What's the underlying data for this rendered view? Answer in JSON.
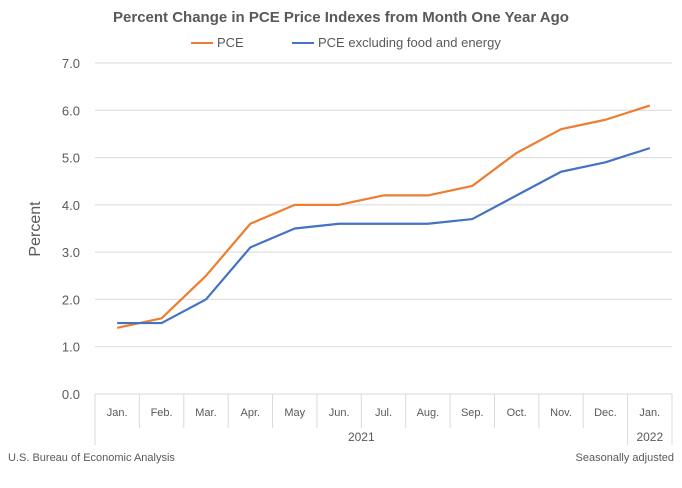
{
  "chart_data": {
    "type": "line",
    "title": "Percent Change in PCE Price Indexes from Month One Year Ago",
    "ylabel": "Percent",
    "xlabel": "",
    "categories": [
      "Jan.",
      "Feb.",
      "Mar.",
      "Apr.",
      "May",
      "Jun.",
      "Jul.",
      "Aug.",
      "Sep.",
      "Oct.",
      "Nov.",
      "Dec.",
      "Jan."
    ],
    "year_groups": [
      {
        "label": "2021",
        "count": 12
      },
      {
        "label": "2022",
        "count": 1
      }
    ],
    "ylim": [
      0,
      7
    ],
    "yticks": [
      "0.0",
      "1.0",
      "2.0",
      "3.0",
      "4.0",
      "5.0",
      "6.0",
      "7.0"
    ],
    "grid": true,
    "legend_position": "top",
    "series": [
      {
        "name": "PCE",
        "color": "#ED7D31",
        "values": [
          1.4,
          1.6,
          2.5,
          3.6,
          4.0,
          4.0,
          4.2,
          4.2,
          4.4,
          5.1,
          5.6,
          5.8,
          6.1
        ]
      },
      {
        "name": "PCE excluding food and energy",
        "color": "#4472C4",
        "values": [
          1.5,
          1.5,
          2.0,
          3.1,
          3.5,
          3.6,
          3.6,
          3.6,
          3.7,
          4.2,
          4.7,
          4.9,
          5.2
        ]
      }
    ]
  },
  "footer": {
    "source": "U.S. Bureau of Economic Analysis",
    "note": "Seasonally adjusted"
  }
}
